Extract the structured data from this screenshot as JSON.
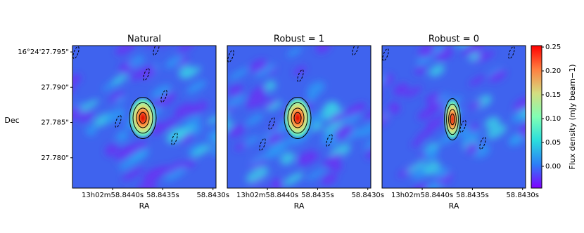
{
  "chart_data": [
    {
      "type": "image",
      "title": "Natural",
      "xlabel": "RA",
      "ylabel": "Dec",
      "xlim": [
        58.8444,
        58.84297
      ],
      "xticks": [
        {
          "value": 58.844,
          "label": "13h02m58.8440s"
        },
        {
          "value": 58.8435,
          "label": "58.8435s"
        },
        {
          "value": 58.843,
          "label": "58.8430s"
        }
      ],
      "ylim": [
        27.7757,
        27.7959
      ],
      "yticks": [
        {
          "value": 27.795,
          "label": "16°24'27.795\""
        },
        {
          "value": 27.79,
          "label": "27.790\""
        },
        {
          "value": 27.785,
          "label": "27.785\""
        },
        {
          "value": 27.78,
          "label": "27.780\""
        }
      ]
    },
    {
      "type": "image",
      "title": "Robust = 1",
      "xlabel": "RA",
      "xlim": [
        58.8444,
        58.84297
      ],
      "xticks": [
        {
          "value": 58.844,
          "label": "13h02m58.8440s"
        },
        {
          "value": 58.8435,
          "label": "58.8435s"
        },
        {
          "value": 58.843,
          "label": "58.8430s"
        }
      ],
      "ylim": [
        27.7757,
        27.7959
      ]
    },
    {
      "type": "image",
      "title": "Robust = 0",
      "xlabel": "RA",
      "xlim": [
        58.8444,
        58.84297
      ],
      "xticks": [
        {
          "value": 58.844,
          "label": "13h02m58.8440s"
        },
        {
          "value": 58.8435,
          "label": "58.8435s"
        },
        {
          "value": 58.843,
          "label": "58.8430s"
        }
      ],
      "ylim": [
        27.7757,
        27.7959
      ]
    },
    {
      "type": "colorbar",
      "label": "Flux density (mJy beam−1)",
      "ylim": [
        -0.0456,
        0.253
      ],
      "yticks": [
        {
          "value": 0,
          "label": "0.00"
        },
        {
          "value": 0.05,
          "label": "0.05"
        },
        {
          "value": 0.1,
          "label": "0.10"
        },
        {
          "value": 0.15,
          "label": "0.15"
        },
        {
          "value": 0.2,
          "label": "0.20"
        },
        {
          "value": 0.25,
          "label": "0.25"
        }
      ],
      "colormap": [
        "#8000ff",
        "#2c7ef7",
        "#2adddd",
        "#80ffb4",
        "#d4dd80",
        "#ff7f40",
        "#ff0000"
      ]
    }
  ]
}
